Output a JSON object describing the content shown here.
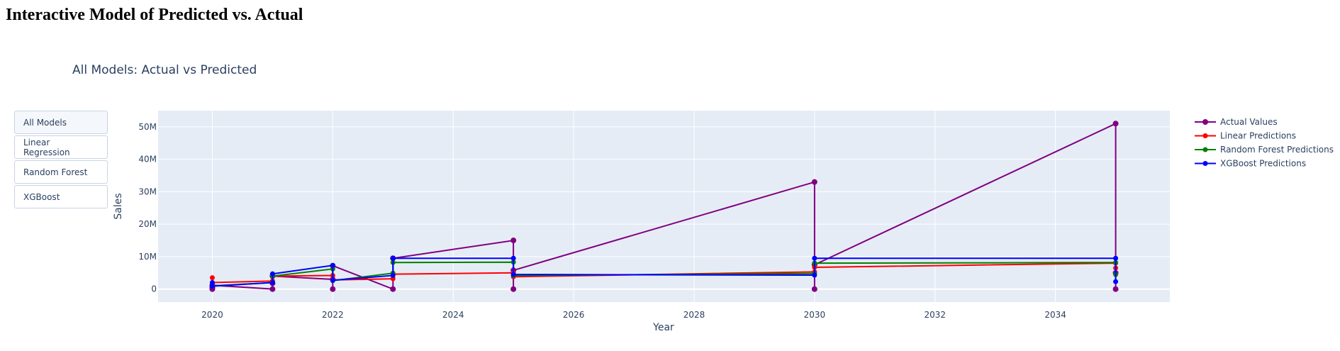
{
  "page": {
    "heading": "Interactive Model of Predicted vs. Actual"
  },
  "buttons": [
    {
      "label": "All Models",
      "active": true
    },
    {
      "label": "Linear Regression",
      "active": false
    },
    {
      "label": "Random Forest",
      "active": false
    },
    {
      "label": "XGBoost",
      "active": false
    }
  ],
  "chart_data": {
    "type": "line",
    "title": "All Models: Actual vs Predicted",
    "xlabel": "Year",
    "ylabel": "Sales",
    "xlim": [
      2019.1,
      2035.9
    ],
    "ylim": [
      -4000000,
      55000000
    ],
    "x_ticks": [
      {
        "value": 2020,
        "label": "2020"
      },
      {
        "value": 2022,
        "label": "2022"
      },
      {
        "value": 2024,
        "label": "2024"
      },
      {
        "value": 2026,
        "label": "2026"
      },
      {
        "value": 2028,
        "label": "2028"
      },
      {
        "value": 2030,
        "label": "2030"
      },
      {
        "value": 2032,
        "label": "2032"
      },
      {
        "value": 2034,
        "label": "2034"
      }
    ],
    "y_ticks": [
      {
        "value": 0,
        "label": "0"
      },
      {
        "value": 10000000,
        "label": "10M"
      },
      {
        "value": 20000000,
        "label": "20M"
      },
      {
        "value": 30000000,
        "label": "30M"
      },
      {
        "value": 40000000,
        "label": "40M"
      },
      {
        "value": 50000000,
        "label": "50M"
      }
    ],
    "grid": true,
    "legend_position": "top-right",
    "series": [
      {
        "name": "Actual Values",
        "color": "#800080",
        "marker_size": 7,
        "points": [
          [
            2020,
            0
          ],
          [
            2020,
            300000
          ],
          [
            2020,
            700000
          ],
          [
            2020,
            1200000
          ],
          [
            2021,
            0
          ],
          [
            2021,
            1800000
          ],
          [
            2021,
            4000000
          ],
          [
            2022,
            3000000
          ],
          [
            2022,
            0
          ],
          [
            2022,
            7200000
          ],
          [
            2023,
            0
          ],
          [
            2023,
            9500000
          ],
          [
            2025,
            15000000
          ],
          [
            2025,
            0
          ],
          [
            2025,
            5800000
          ],
          [
            2030,
            33000000
          ],
          [
            2030,
            0
          ],
          [
            2030,
            7500000
          ],
          [
            2035,
            51000000
          ],
          [
            2035,
            0
          ],
          [
            2035,
            5000000
          ]
        ]
      },
      {
        "name": "Linear Predictions",
        "color": "#ff0000",
        "marker_size": 6,
        "points": [
          [
            2020,
            3500000
          ],
          [
            2020,
            2000000
          ],
          [
            2021,
            2500000
          ],
          [
            2021,
            4000000
          ],
          [
            2022,
            4200000
          ],
          [
            2022,
            2800000
          ],
          [
            2023,
            3200000
          ],
          [
            2023,
            4600000
          ],
          [
            2025,
            5000000
          ],
          [
            2025,
            3800000
          ],
          [
            2030,
            5300000
          ],
          [
            2030,
            6700000
          ],
          [
            2035,
            8000000
          ],
          [
            2035,
            6500000
          ]
        ]
      },
      {
        "name": "Random Forest Predictions",
        "color": "#008000",
        "marker_size": 6,
        "points": [
          [
            2020,
            1500000
          ],
          [
            2020,
            1000000
          ],
          [
            2021,
            2000000
          ],
          [
            2021,
            4000000
          ],
          [
            2022,
            6200000
          ],
          [
            2022,
            2600000
          ],
          [
            2023,
            4900000
          ],
          [
            2023,
            8200000
          ],
          [
            2025,
            8300000
          ],
          [
            2025,
            4200000
          ],
          [
            2030,
            4800000
          ],
          [
            2030,
            8000000
          ],
          [
            2035,
            8200000
          ],
          [
            2035,
            4500000
          ]
        ]
      },
      {
        "name": "XGBoost Predictions",
        "color": "#0000ff",
        "marker_size": 6,
        "points": [
          [
            2020,
            2000000
          ],
          [
            2020,
            900000
          ],
          [
            2021,
            2000000
          ],
          [
            2021,
            4700000
          ],
          [
            2022,
            7300000
          ],
          [
            2022,
            2700000
          ],
          [
            2023,
            4200000
          ],
          [
            2023,
            9500000
          ],
          [
            2025,
            9500000
          ],
          [
            2025,
            4500000
          ],
          [
            2030,
            4300000
          ],
          [
            2030,
            9500000
          ],
          [
            2035,
            9500000
          ],
          [
            2035,
            2300000
          ]
        ]
      }
    ]
  }
}
